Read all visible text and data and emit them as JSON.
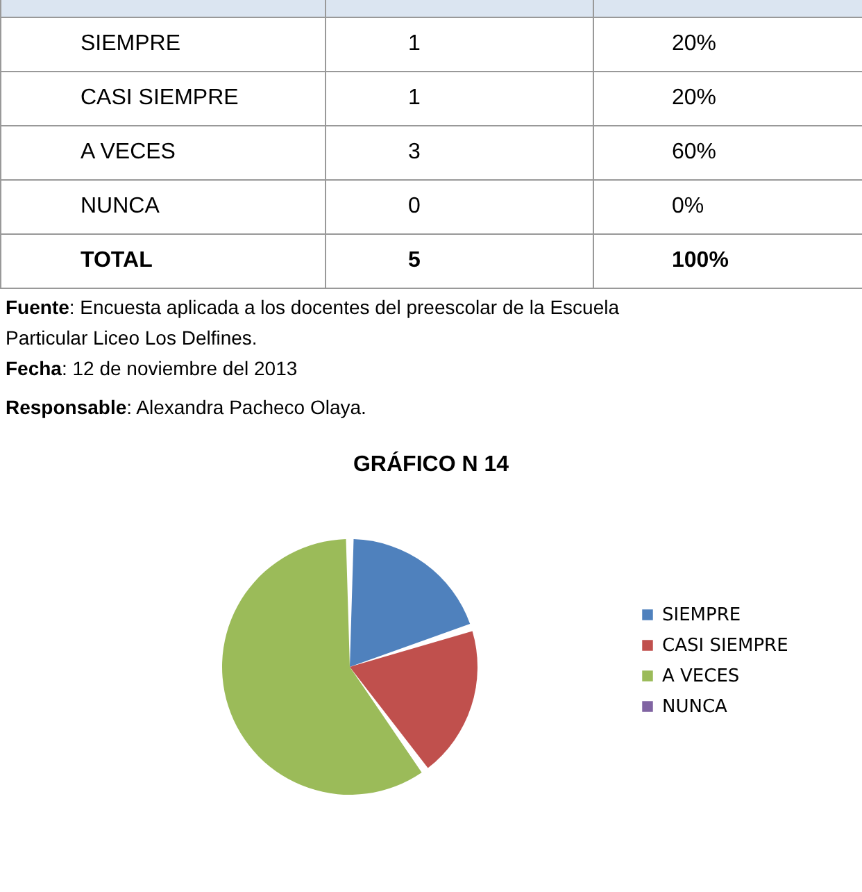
{
  "chart_data": {
    "type": "pie",
    "title": "GRÁFICO N 14",
    "categories": [
      "SIEMPRE",
      "CASI SIEMPRE",
      "A VECES",
      "NUNCA"
    ],
    "values": [
      20,
      20,
      60,
      0
    ],
    "colors": [
      "#4f81bd",
      "#c0504d",
      "#9bbb59",
      "#8064a2"
    ],
    "legend": "right",
    "annotations": [
      "1",
      "20%",
      "1",
      "20%",
      "3",
      "60%",
      "0",
      "0%",
      "TOTAL",
      "5",
      "100%",
      "Fuente: Encuesta aplicada a los docentes del preescolar de la Escuela\nParticular Liceo Los Delfines.",
      "Fecha:   12 de noviembre del 2013",
      "Responsable: Alexandra Pacheco Olaya."
    ]
  }
}
